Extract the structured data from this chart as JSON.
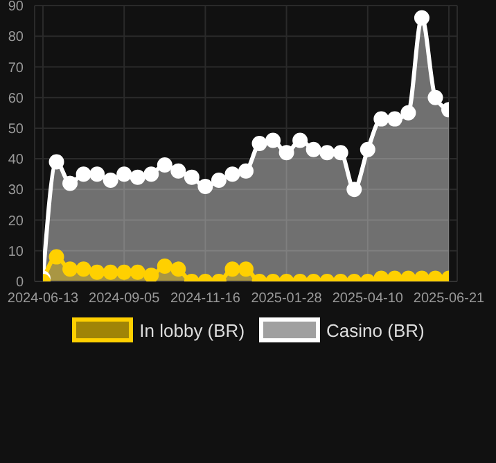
{
  "chart_data": {
    "type": "area",
    "categories": [
      "2024-06-13",
      null,
      null,
      null,
      null,
      null,
      "2024-09-05",
      null,
      null,
      null,
      null,
      null,
      "2024-11-16",
      null,
      null,
      null,
      null,
      null,
      "2025-01-28",
      null,
      null,
      null,
      null,
      null,
      "2025-04-10",
      null,
      null,
      null,
      null,
      null,
      "2025-06-21"
    ],
    "series": [
      {
        "name": "In lobby (BR)",
        "color": "#ffd000",
        "values": [
          0,
          8,
          4,
          4,
          3,
          3,
          3,
          3,
          2,
          5,
          4,
          0,
          0,
          0,
          4,
          4,
          0,
          0,
          0,
          0,
          0,
          0,
          0,
          0,
          0,
          1,
          1,
          1,
          1,
          1,
          1
        ]
      },
      {
        "name": "Casino (BR)",
        "color": "#ffffff",
        "values": [
          1,
          39,
          32,
          35,
          35,
          33,
          35,
          34,
          35,
          38,
          36,
          34,
          31,
          33,
          35,
          36,
          45,
          46,
          42,
          46,
          43,
          42,
          42,
          30,
          43,
          53,
          53,
          55,
          86,
          60,
          56
        ]
      }
    ],
    "ylim": [
      0,
      90
    ],
    "yticks": [
      0,
      10,
      20,
      30,
      40,
      50,
      60,
      70,
      80,
      90
    ],
    "grid": true,
    "legend": "bottom",
    "marker": "circle"
  }
}
